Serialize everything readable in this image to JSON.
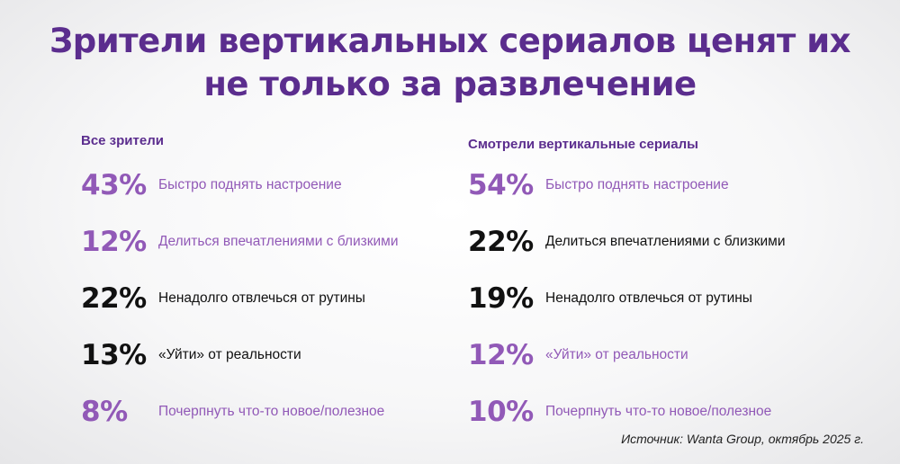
{
  "title": {
    "line1": "Зрители вертикальных сериалов ценят их",
    "line2": "не только за развлечение"
  },
  "chart_data": [
    {
      "type": "table",
      "heading": "Все зрители",
      "rows": [
        {
          "value": "43%",
          "label": "Быстро поднять настроение",
          "color": "#9159b7"
        },
        {
          "value": "12%",
          "label": "Делиться впечатлениями с близкими",
          "color": "#9159b7"
        },
        {
          "value": "22%",
          "label": "Ненадолго отвлечься от рутины",
          "color": "#111111"
        },
        {
          "value": "13%",
          "label": "«Уйти» от реальности",
          "color": "#111111"
        },
        {
          "value": "8%",
          "label": "Почерпнуть что-то новое/полезное",
          "color": "#9159b7"
        }
      ]
    },
    {
      "type": "table",
      "heading": "Смотрели вертикальные сериалы",
      "rows": [
        {
          "value": "54%",
          "label": "Быстро поднять настроение",
          "color": "#9159b7"
        },
        {
          "value": "22%",
          "label": "Делиться впечатлениями с близкими",
          "color": "#111111"
        },
        {
          "value": "19%",
          "label": "Ненадолго отвлечься от рутины",
          "color": "#111111"
        },
        {
          "value": "12%",
          "label": "«Уйти» от реальности",
          "color": "#9159b7"
        },
        {
          "value": "10%",
          "label": "Почерпнуть что-то новое/полезное",
          "color": "#9159b7"
        }
      ]
    }
  ],
  "source": "Источник: Wanta Group,  октябрь 2025 г."
}
